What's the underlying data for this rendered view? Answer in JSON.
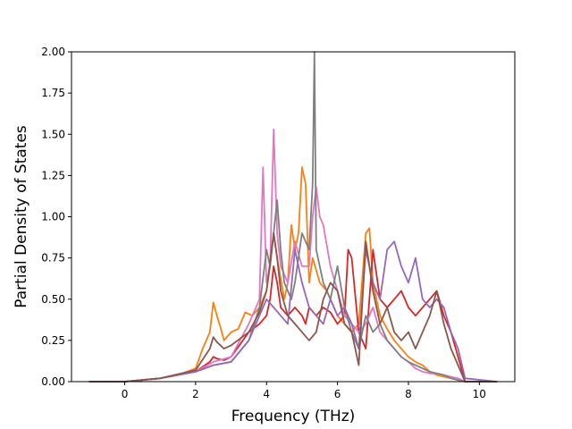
{
  "chart_data": {
    "type": "line",
    "title": "",
    "xlabel": "Frequency (THz)",
    "ylabel": "Partial Density of States",
    "xlim": [
      -1.5,
      11.0
    ],
    "ylim": [
      0.0,
      2.0
    ],
    "xticks": [
      "0",
      "2",
      "4",
      "6",
      "8",
      "10"
    ],
    "yticks": [
      "0.00",
      "0.25",
      "0.50",
      "0.75",
      "1.00",
      "1.25",
      "1.50",
      "1.75",
      "2.00"
    ],
    "grid": false,
    "legend": "none",
    "series": [
      {
        "color": "#ff7f0e",
        "x": [
          -1.0,
          0.0,
          0.5,
          1.0,
          1.5,
          2.0,
          2.2,
          2.4,
          2.5,
          2.6,
          2.7,
          2.8,
          3.0,
          3.2,
          3.4,
          3.6,
          3.8,
          4.0,
          4.1,
          4.2,
          4.3,
          4.5,
          4.6,
          4.7,
          4.8,
          4.9,
          5.0,
          5.1,
          5.2,
          5.3,
          5.5,
          5.7,
          6.0,
          6.2,
          6.4,
          6.6,
          6.8,
          6.9,
          7.0,
          7.2,
          7.4,
          7.6,
          7.8,
          8.0,
          8.2,
          8.4,
          8.6,
          8.8,
          9.0,
          9.2,
          9.4,
          9.6,
          10.5
        ],
        "y": [
          0.0,
          0.0,
          0.01,
          0.02,
          0.04,
          0.08,
          0.2,
          0.3,
          0.48,
          0.4,
          0.33,
          0.25,
          0.3,
          0.32,
          0.42,
          0.4,
          0.45,
          0.55,
          0.7,
          0.9,
          0.75,
          0.5,
          0.6,
          0.95,
          0.8,
          0.9,
          1.3,
          1.2,
          0.6,
          0.75,
          0.6,
          0.55,
          0.4,
          0.35,
          0.3,
          0.35,
          0.9,
          0.93,
          0.6,
          0.4,
          0.32,
          0.25,
          0.2,
          0.15,
          0.12,
          0.1,
          0.06,
          0.04,
          0.03,
          0.02,
          0.01,
          0.0,
          0.0
        ]
      },
      {
        "color": "#d62728",
        "x": [
          -1.0,
          0.0,
          1.0,
          2.0,
          2.4,
          2.5,
          2.6,
          2.8,
          3.0,
          3.5,
          3.8,
          4.0,
          4.1,
          4.2,
          4.3,
          4.4,
          4.6,
          4.8,
          5.0,
          5.1,
          5.2,
          5.4,
          5.6,
          5.8,
          6.0,
          6.2,
          6.3,
          6.4,
          6.6,
          6.8,
          7.0,
          7.2,
          7.4,
          7.6,
          7.8,
          8.0,
          8.2,
          8.4,
          8.6,
          8.8,
          9.0,
          9.2,
          9.4,
          9.6,
          10.5
        ],
        "y": [
          0.0,
          0.0,
          0.02,
          0.06,
          0.12,
          0.15,
          0.14,
          0.13,
          0.15,
          0.3,
          0.35,
          0.4,
          0.5,
          0.7,
          0.6,
          0.45,
          0.4,
          0.45,
          0.4,
          0.35,
          0.45,
          0.4,
          0.45,
          0.42,
          0.35,
          0.4,
          0.8,
          0.75,
          0.3,
          0.2,
          0.8,
          0.5,
          0.45,
          0.5,
          0.55,
          0.45,
          0.4,
          0.45,
          0.5,
          0.55,
          0.4,
          0.3,
          0.15,
          0.0,
          0.0
        ]
      },
      {
        "color": "#e377c2",
        "x": [
          -1.0,
          0.0,
          1.0,
          2.0,
          2.5,
          3.0,
          3.5,
          3.8,
          3.9,
          4.0,
          4.1,
          4.2,
          4.3,
          4.4,
          4.6,
          4.8,
          5.0,
          5.2,
          5.3,
          5.4,
          5.5,
          5.6,
          5.8,
          6.0,
          6.2,
          6.4,
          6.6,
          6.8,
          7.0,
          7.2,
          7.4,
          7.6,
          7.8,
          8.0,
          8.2,
          8.4,
          8.6,
          8.8,
          9.0,
          9.2,
          9.4,
          9.6,
          10.5
        ],
        "y": [
          0.0,
          0.0,
          0.02,
          0.06,
          0.12,
          0.15,
          0.35,
          0.5,
          1.3,
          0.6,
          0.7,
          1.53,
          0.9,
          0.7,
          0.6,
          0.85,
          0.7,
          0.7,
          1.0,
          1.18,
          1.0,
          0.95,
          0.7,
          0.55,
          0.4,
          0.35,
          0.3,
          0.35,
          0.45,
          0.3,
          0.25,
          0.2,
          0.15,
          0.12,
          0.08,
          0.06,
          0.05,
          0.05,
          0.04,
          0.03,
          0.02,
          0.0,
          0.0
        ]
      },
      {
        "color": "#7f7f7f",
        "x": [
          -1.0,
          0.0,
          1.0,
          2.0,
          2.5,
          3.0,
          3.5,
          3.8,
          4.0,
          4.1,
          4.2,
          4.3,
          4.4,
          4.5,
          4.6,
          4.7,
          4.8,
          5.0,
          5.2,
          5.3,
          5.35,
          5.4,
          5.6,
          5.8,
          6.0,
          6.2,
          6.4,
          6.6,
          6.8,
          7.0,
          7.2,
          7.4,
          7.6,
          7.8,
          8.0,
          8.2,
          8.4,
          8.6,
          8.8,
          9.0,
          9.2,
          9.4,
          9.6,
          10.5
        ],
        "y": [
          0.0,
          0.0,
          0.02,
          0.06,
          0.1,
          0.12,
          0.25,
          0.45,
          0.8,
          0.7,
          0.9,
          1.1,
          0.8,
          0.6,
          0.55,
          0.5,
          0.6,
          0.9,
          0.8,
          1.2,
          2.0,
          0.8,
          0.6,
          0.5,
          0.7,
          0.45,
          0.3,
          0.2,
          0.4,
          0.3,
          0.35,
          0.25,
          0.2,
          0.15,
          0.12,
          0.1,
          0.08,
          0.06,
          0.05,
          0.04,
          0.02,
          0.01,
          0.0,
          0.0
        ]
      },
      {
        "color": "#9467bd",
        "x": [
          -1.0,
          0.0,
          1.0,
          2.0,
          2.5,
          3.0,
          3.5,
          3.8,
          4.0,
          4.2,
          4.4,
          4.6,
          4.8,
          5.0,
          5.2,
          5.4,
          5.6,
          5.8,
          6.0,
          6.2,
          6.4,
          6.6,
          6.8,
          7.0,
          7.2,
          7.4,
          7.6,
          7.8,
          8.0,
          8.2,
          8.4,
          8.6,
          8.8,
          9.0,
          9.2,
          9.4,
          9.6,
          10.5
        ],
        "y": [
          0.0,
          0.0,
          0.02,
          0.06,
          0.1,
          0.12,
          0.25,
          0.4,
          0.5,
          0.45,
          0.4,
          0.35,
          0.8,
          0.6,
          0.45,
          0.4,
          0.35,
          0.5,
          0.4,
          0.45,
          0.35,
          0.2,
          0.8,
          0.6,
          0.5,
          0.8,
          0.85,
          0.7,
          0.6,
          0.75,
          0.5,
          0.45,
          0.5,
          0.45,
          0.3,
          0.2,
          0.02,
          0.0
        ]
      },
      {
        "color": "#8c564b",
        "x": [
          -1.0,
          0.0,
          1.0,
          2.0,
          2.4,
          2.5,
          2.6,
          2.8,
          3.0,
          3.5,
          3.8,
          4.0,
          4.2,
          4.3,
          4.4,
          4.6,
          4.8,
          5.0,
          5.2,
          5.4,
          5.6,
          5.8,
          6.0,
          6.2,
          6.4,
          6.6,
          6.8,
          7.0,
          7.2,
          7.4,
          7.6,
          7.8,
          8.0,
          8.2,
          8.4,
          8.6,
          8.8,
          9.0,
          9.2,
          9.4,
          9.6,
          10.5
        ],
        "y": [
          0.0,
          0.0,
          0.02,
          0.07,
          0.2,
          0.27,
          0.24,
          0.2,
          0.22,
          0.3,
          0.42,
          0.55,
          0.9,
          0.75,
          0.55,
          0.4,
          0.35,
          0.3,
          0.25,
          0.3,
          0.5,
          0.6,
          0.55,
          0.35,
          0.3,
          0.1,
          0.85,
          0.55,
          0.35,
          0.45,
          0.3,
          0.25,
          0.3,
          0.2,
          0.3,
          0.4,
          0.55,
          0.35,
          0.2,
          0.1,
          0.0,
          0.0
        ]
      }
    ]
  }
}
